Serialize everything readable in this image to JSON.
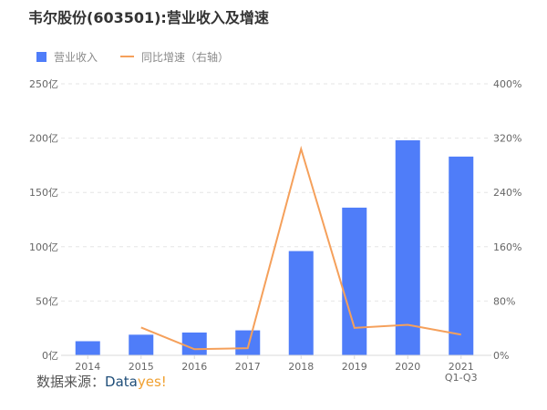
{
  "title": "韦尔股份(603501):营业收入及增速",
  "legend": {
    "bar_label": "营业收入",
    "line_label": "同比增速（右轴）",
    "bar_color": "#4f7df9",
    "line_color": "#f5a05b"
  },
  "source": {
    "prefix": "数据来源：",
    "brand_part1": "Data",
    "brand_part2": "yes!"
  },
  "chart_data": {
    "type": "bar+line",
    "title": "韦尔股份(603501):营业收入及增速",
    "categories": [
      "2014",
      "2015",
      "2016",
      "2017",
      "2018",
      "2019",
      "2020",
      "2021 Q1-Q3"
    ],
    "series": [
      {
        "name": "营业收入",
        "type": "bar",
        "axis": "left",
        "unit": "亿",
        "values": [
          13,
          19,
          21,
          23,
          96,
          136,
          198,
          183
        ]
      },
      {
        "name": "同比增速（右轴）",
        "type": "line",
        "axis": "right",
        "unit": "%",
        "values": [
          null,
          41,
          9,
          10.5,
          304,
          40.5,
          45,
          30.5
        ]
      }
    ],
    "left_axis": {
      "ticks": [
        "0亿",
        "50亿",
        "100亿",
        "150亿",
        "200亿",
        "250亿"
      ],
      "ylim": [
        0,
        250
      ]
    },
    "right_axis": {
      "ticks": [
        "0%",
        "80%",
        "160%",
        "240%",
        "320%",
        "400%"
      ],
      "ylim": [
        0,
        400
      ]
    },
    "xlabel": "",
    "ylabel": "",
    "grid": true,
    "legend_position": "top-left"
  }
}
